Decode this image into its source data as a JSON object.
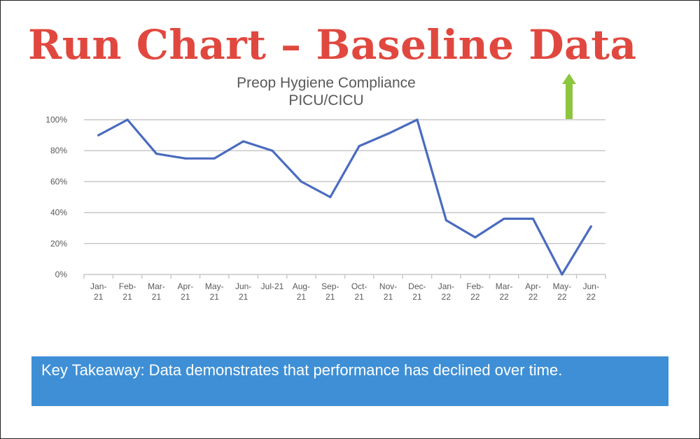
{
  "slide": {
    "title": "Run Chart – Baseline Data",
    "takeaway": "Key Takeaway:  Data demonstrates that performance has declined over time."
  },
  "colors": {
    "title": "#e0483f",
    "line": "#4a6bbf",
    "grid": "#c8c8c8",
    "arrow": "#8cc63f",
    "takeaway_bg": "#3e8fd6"
  },
  "chart_data": {
    "type": "line",
    "title": "Preop Hygiene Compliance",
    "subtitle": "PICU/CICU",
    "categories": [
      [
        "Jan-",
        "21"
      ],
      [
        "Feb-",
        "21"
      ],
      [
        "Mar-",
        "21"
      ],
      [
        "Apr-",
        "21"
      ],
      [
        "May-",
        "21"
      ],
      [
        "Jun-",
        "21"
      ],
      [
        "Jul-21"
      ],
      [
        "Aug-",
        "21"
      ],
      [
        "Sep-",
        "21"
      ],
      [
        "Oct-",
        "21"
      ],
      [
        "Nov-",
        "21"
      ],
      [
        "Dec-",
        "21"
      ],
      [
        "Jan-",
        "22"
      ],
      [
        "Feb-",
        "22"
      ],
      [
        "Mar-",
        "22"
      ],
      [
        "Apr-",
        "22"
      ],
      [
        "May-",
        "22"
      ],
      [
        "Jun-",
        "22"
      ]
    ],
    "values": [
      90,
      100,
      78,
      75,
      75,
      86,
      80,
      60,
      50,
      83,
      91,
      100,
      35,
      24,
      36,
      36,
      0,
      31
    ],
    "ylim": [
      0,
      100
    ],
    "yticks": [
      0,
      20,
      40,
      60,
      80,
      100
    ],
    "ytick_labels": [
      "0%",
      "20%",
      "40%",
      "60%",
      "80%",
      "100%"
    ],
    "grid": true,
    "annotation": "up-arrow-icon"
  }
}
